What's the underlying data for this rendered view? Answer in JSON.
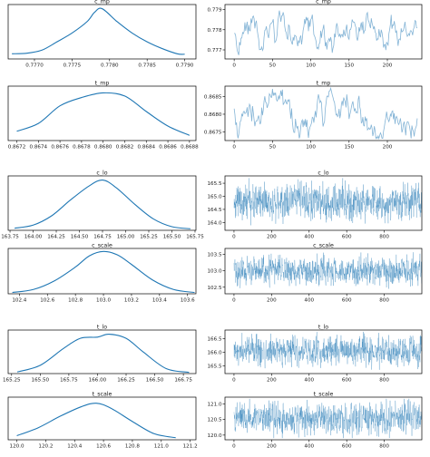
{
  "figure": {
    "line_color": "#1f77b4",
    "background": "#ffffff"
  },
  "chart_data": [
    {
      "type": "line",
      "variant": "kde",
      "title": "c_mp",
      "x_ticks": [
        0.777,
        0.7775,
        0.778,
        0.7785,
        0.779
      ],
      "x_tick_labels": [
        "0.7770",
        "0.7775",
        "0.7780",
        "0.7785",
        "0.7790"
      ],
      "xlim": [
        0.77665,
        0.77915
      ],
      "y_ticks": [],
      "y_tick_labels": [],
      "x": [
        0.7767,
        0.7769,
        0.7771,
        0.7773,
        0.7775,
        0.7777,
        0.7778,
        0.7779,
        0.7781,
        0.7783,
        0.7785,
        0.7787,
        0.7789,
        0.779
      ],
      "y": [
        0.1,
        0.11,
        0.17,
        0.33,
        0.5,
        0.72,
        0.9,
        0.97,
        0.72,
        0.5,
        0.33,
        0.2,
        0.1,
        0.09
      ],
      "ylim": [
        0,
        1.05
      ]
    },
    {
      "type": "line",
      "variant": "trace",
      "title": "c_mp",
      "x_ticks": [
        0,
        50,
        100,
        150,
        200
      ],
      "x_tick_labels": [
        "0",
        "50",
        "100",
        "150",
        "200"
      ],
      "y_ticks": [
        0.777,
        0.778,
        0.779
      ],
      "y_tick_labels": [
        "0.777",
        "0.778",
        "0.779"
      ],
      "xlim": [
        -12,
        245
      ],
      "ylim": [
        0.77655,
        0.77925
      ],
      "n": 240,
      "level": 0.7779,
      "spread": 0.00055
    },
    {
      "type": "line",
      "variant": "kde",
      "title": "t_mp",
      "x_ticks": [
        0.8672,
        0.8674,
        0.8676,
        0.8678,
        0.868,
        0.8682,
        0.8684,
        0.8686,
        0.8688
      ],
      "x_tick_labels": [
        "0.8672",
        "0.8674",
        "0.8676",
        "0.8678",
        "0.8680",
        "0.8682",
        "0.8684",
        "0.8686",
        "0.8688"
      ],
      "xlim": [
        0.86712,
        0.86886
      ],
      "y_ticks": [],
      "y_tick_labels": [],
      "x": [
        0.8672,
        0.8674,
        0.8676,
        0.8678,
        0.868,
        0.8682,
        0.8684,
        0.8686,
        0.8688
      ],
      "y": [
        0.18,
        0.33,
        0.67,
        0.83,
        0.92,
        0.86,
        0.56,
        0.28,
        0.1
      ],
      "ylim": [
        0,
        1.05
      ]
    },
    {
      "type": "line",
      "variant": "trace",
      "title": "t_mp",
      "x_ticks": [
        0,
        50,
        100,
        150,
        200
      ],
      "x_tick_labels": [
        "0",
        "50",
        "100",
        "150",
        "200"
      ],
      "y_ticks": [
        0.8675,
        0.868,
        0.8685
      ],
      "y_tick_labels": [
        "0.8675",
        "0.8680",
        "0.8685"
      ],
      "xlim": [
        -12,
        245
      ],
      "ylim": [
        0.86725,
        0.8688
      ],
      "n": 240,
      "level": 0.8679,
      "spread": 0.00035
    },
    {
      "type": "line",
      "variant": "kde",
      "title": "c_lo",
      "x_ticks": [
        163.75,
        164.0,
        164.25,
        164.5,
        164.75,
        165.0,
        165.25,
        165.5,
        165.75
      ],
      "x_tick_labels": [
        "163.75",
        "164.00",
        "164.25",
        "164.50",
        "164.75",
        "165.00",
        "165.25",
        "165.50",
        "165.75"
      ],
      "xlim": [
        163.73,
        165.76
      ],
      "y_ticks": [],
      "y_tick_labels": [],
      "x": [
        163.8,
        164.0,
        164.2,
        164.4,
        164.6,
        164.75,
        164.9,
        165.1,
        165.3,
        165.5,
        165.7
      ],
      "y": [
        0.04,
        0.1,
        0.28,
        0.58,
        0.85,
        0.97,
        0.82,
        0.5,
        0.22,
        0.07,
        0.03
      ],
      "ylim": [
        0,
        1.05
      ]
    },
    {
      "type": "line",
      "variant": "trace",
      "title": "c_lo",
      "x_ticks": [
        0,
        200,
        400,
        600,
        800
      ],
      "x_tick_labels": [
        "0",
        "200",
        "400",
        "600",
        "800"
      ],
      "y_ticks": [
        164.0,
        164.5,
        165.0,
        165.5
      ],
      "y_tick_labels": [
        "164.0",
        "164.5",
        "165.0",
        "165.5"
      ],
      "xlim": [
        -48,
        1000
      ],
      "ylim": [
        163.7,
        165.78
      ],
      "n": 1000,
      "level": 164.78,
      "spread": 0.42
    },
    {
      "type": "line",
      "variant": "kde",
      "title": "c_scale",
      "x_ticks": [
        102.4,
        102.6,
        102.8,
        103.0,
        103.2,
        103.4,
        103.6
      ],
      "x_tick_labels": [
        "102.4",
        "102.6",
        "102.8",
        "103.0",
        "103.2",
        "103.4",
        "103.6"
      ],
      "xlim": [
        102.32,
        103.66
      ],
      "y_ticks": [],
      "y_tick_labels": [],
      "x": [
        102.35,
        102.5,
        102.65,
        102.8,
        102.9,
        103.0,
        103.1,
        103.2,
        103.35,
        103.5,
        103.65
      ],
      "y": [
        0.03,
        0.1,
        0.3,
        0.62,
        0.88,
        0.98,
        0.9,
        0.68,
        0.32,
        0.1,
        0.03
      ],
      "ylim": [
        0,
        1.05
      ]
    },
    {
      "type": "line",
      "variant": "trace",
      "title": "c_scale",
      "x_ticks": [
        0,
        200,
        400,
        600,
        800
      ],
      "x_tick_labels": [
        "0",
        "200",
        "400",
        "600",
        "800"
      ],
      "y_ticks": [
        102.5,
        103.0,
        103.5
      ],
      "y_tick_labels": [
        "102.5",
        "103.0",
        "103.5"
      ],
      "xlim": [
        -48,
        1000
      ],
      "ylim": [
        102.3,
        103.68
      ],
      "n": 1000,
      "level": 103.0,
      "spread": 0.26
    },
    {
      "type": "line",
      "variant": "kde",
      "title": "t_lo",
      "x_ticks": [
        165.25,
        165.5,
        165.75,
        166.0,
        166.25,
        166.5,
        166.75
      ],
      "x_tick_labels": [
        "165.25",
        "165.50",
        "165.75",
        "166.00",
        "166.25",
        "166.50",
        "166.75"
      ],
      "xlim": [
        165.22,
        166.86
      ],
      "y_ticks": [],
      "y_tick_labels": [],
      "x": [
        165.3,
        165.5,
        165.7,
        165.85,
        166.0,
        166.1,
        166.25,
        166.4,
        166.6,
        166.8
      ],
      "y": [
        0.04,
        0.2,
        0.6,
        0.85,
        0.88,
        0.95,
        0.85,
        0.52,
        0.12,
        0.03
      ],
      "ylim": [
        0,
        1.05
      ]
    },
    {
      "type": "line",
      "variant": "trace",
      "title": "t_lo",
      "x_ticks": [
        0,
        200,
        400,
        600,
        800
      ],
      "x_tick_labels": [
        "0",
        "200",
        "400",
        "600",
        "800"
      ],
      "y_ticks": [
        165.5,
        166.0,
        166.5
      ],
      "y_tick_labels": [
        "165.5",
        "166.0",
        "166.5"
      ],
      "xlim": [
        -48,
        1000
      ],
      "ylim": [
        165.22,
        166.82
      ],
      "n": 1000,
      "level": 166.05,
      "spread": 0.32
    },
    {
      "type": "line",
      "variant": "kde",
      "title": "t_scale",
      "x_ticks": [
        120.0,
        120.2,
        120.4,
        120.6,
        120.8,
        121.0,
        121.2
      ],
      "x_tick_labels": [
        "120.0",
        "120.2",
        "120.4",
        "120.6",
        "120.8",
        "121.0",
        "121.2"
      ],
      "xlim": [
        119.94,
        121.24
      ],
      "y_ticks": [],
      "y_tick_labels": [],
      "x": [
        120.0,
        120.15,
        120.3,
        120.45,
        120.55,
        120.65,
        120.8,
        120.95,
        121.1
      ],
      "y": [
        0.1,
        0.3,
        0.58,
        0.82,
        0.9,
        0.78,
        0.45,
        0.15,
        0.05
      ],
      "ylim": [
        0,
        1.05
      ]
    },
    {
      "type": "line",
      "variant": "trace",
      "title": "t_scale",
      "x_ticks": [
        0,
        200,
        400,
        600,
        800
      ],
      "x_tick_labels": [
        "0",
        "200",
        "400",
        "600",
        "800"
      ],
      "y_ticks": [
        120.0,
        120.5,
        121.0
      ],
      "y_tick_labels": [
        "120.0",
        "120.5",
        "121.0"
      ],
      "xlim": [
        -48,
        1000
      ],
      "ylim": [
        119.85,
        121.22
      ],
      "n": 1000,
      "level": 120.55,
      "spread": 0.3
    }
  ]
}
